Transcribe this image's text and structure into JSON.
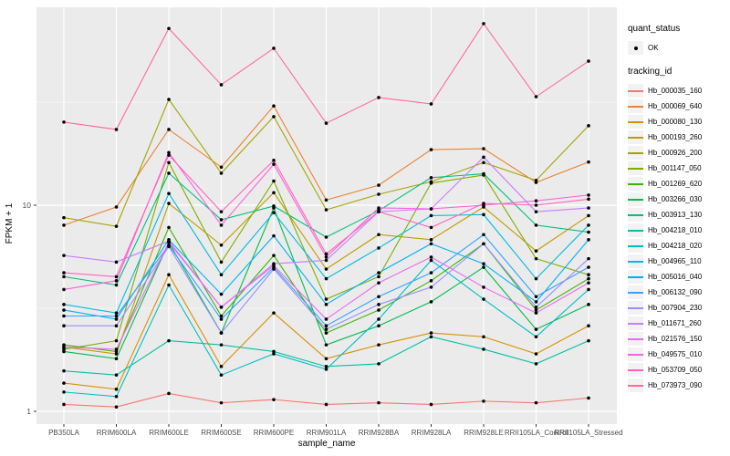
{
  "chart_data": {
    "type": "line",
    "title": "",
    "xlabel": "sample_name",
    "ylabel": "FPKM + 1",
    "y_axis": {
      "scale": "log10",
      "ticks": [
        1,
        10
      ],
      "tick_labels": [
        "1",
        "10"
      ],
      "minor_ticks": [
        3.162,
        31.62
      ],
      "ylim": [
        0.95,
        91
      ],
      "grid": true
    },
    "x_axis": {
      "categories": [
        "PB350LA",
        "RRIM600LA",
        "RRIM600LE",
        "RRIM600SE",
        "RRIM600PE",
        "RRIM901LA",
        "RRIM928BA",
        "RRIM928LA",
        "RRIM928LE",
        "RRII105LA_Control",
        "RRII105LA_Stressed"
      ],
      "grid": true
    },
    "legend": {
      "position": "right",
      "quant_status_title": "quant_status",
      "quant_status_items": [
        {
          "label": "OK",
          "marker": "black-point"
        }
      ],
      "tracking_id_title": "tracking_id"
    },
    "panel_background": "#EBEBEB",
    "gridline_color": "#FFFFFF",
    "point_color": "#000000",
    "series": [
      {
        "name": "Hb_000035_160",
        "color": "#F8766D",
        "values": [
          1.08,
          1.05,
          1.22,
          1.1,
          1.14,
          1.08,
          1.1,
          1.08,
          1.12,
          1.1,
          1.16
        ]
      },
      {
        "name": "Hb_000069_640",
        "color": "#EA8331",
        "values": [
          8.0,
          9.8,
          23.3,
          15.3,
          30.3,
          10.6,
          12.5,
          18.6,
          18.8,
          12.9,
          16.2
        ]
      },
      {
        "name": "Hb_000080_130",
        "color": "#D89000",
        "values": [
          1.37,
          1.28,
          4.6,
          1.65,
          3.0,
          1.8,
          2.1,
          2.4,
          2.3,
          1.9,
          2.6
        ]
      },
      {
        "name": "Hb_000193_260",
        "color": "#C09B00",
        "values": [
          2.05,
          1.9,
          10.2,
          6.4,
          11.5,
          4.9,
          7.2,
          6.8,
          9.8,
          6.0,
          8.9
        ]
      },
      {
        "name": "Hb_000926_200",
        "color": "#A3A500",
        "values": [
          8.7,
          7.9,
          32.6,
          14.3,
          26.9,
          9.5,
          11.3,
          13.0,
          16.1,
          13.2,
          24.3
        ]
      },
      {
        "name": "Hb_001147_050",
        "color": "#7CAE00",
        "values": [
          2.0,
          2.2,
          16.1,
          5.3,
          13.1,
          3.5,
          4.5,
          12.8,
          14.0,
          5.5,
          4.6
        ]
      },
      {
        "name": "Hb_001269_620",
        "color": "#39B600",
        "values": [
          2.1,
          1.95,
          7.8,
          2.9,
          5.7,
          2.4,
          3.1,
          4.3,
          6.5,
          3.1,
          4.4
        ]
      },
      {
        "name": "Hb_003266_030",
        "color": "#00BB4E",
        "values": [
          1.95,
          1.8,
          6.6,
          2.4,
          9.7,
          2.1,
          2.6,
          3.4,
          5.0,
          2.5,
          3.3
        ]
      },
      {
        "name": "Hb_003913_130",
        "color": "#00BF7D",
        "values": [
          4.5,
          4.1,
          14.3,
          8.5,
          9.9,
          7.0,
          9.4,
          13.6,
          14.2,
          8.0,
          7.4
        ]
      },
      {
        "name": "Hb_004218_010",
        "color": "#00C1A3",
        "values": [
          1.57,
          1.5,
          2.2,
          2.1,
          1.95,
          1.65,
          1.7,
          2.3,
          2.0,
          1.7,
          2.2
        ]
      },
      {
        "name": "Hb_004218_020",
        "color": "#00BFC4",
        "values": [
          1.24,
          1.18,
          4.1,
          1.5,
          1.9,
          1.6,
          2.8,
          5.4,
          3.5,
          2.3,
          3.9
        ]
      },
      {
        "name": "Hb_004965_110",
        "color": "#00BAE0",
        "values": [
          3.3,
          3.0,
          11.4,
          4.6,
          9.2,
          4.4,
          6.2,
          8.9,
          9.0,
          4.4,
          8.0
        ]
      },
      {
        "name": "Hb_005016_040",
        "color": "#00B0F6",
        "values": [
          3.1,
          2.8,
          6.8,
          3.7,
          7.1,
          3.3,
          4.7,
          6.5,
          5.2,
          3.4,
          6.8
        ]
      },
      {
        "name": "Hb_006132_090",
        "color": "#35A2FF",
        "values": [
          2.9,
          2.9,
          6.4,
          2.8,
          5.0,
          2.6,
          3.6,
          4.7,
          7.2,
          3.6,
          5.0
        ]
      },
      {
        "name": "Hb_007904_230",
        "color": "#9590FF",
        "values": [
          2.6,
          2.6,
          6.3,
          2.4,
          4.9,
          2.5,
          3.3,
          4.0,
          6.5,
          3.2,
          5.5
        ]
      },
      {
        "name": "Hb_011671_260",
        "color": "#C77CFF",
        "values": [
          5.7,
          5.3,
          6.7,
          3.2,
          5.2,
          5.4,
          9.3,
          9.6,
          17.1,
          9.3,
          9.7
        ]
      },
      {
        "name": "Hb_021576_150",
        "color": "#E76BF3",
        "values": [
          2.05,
          2.0,
          6.6,
          3.2,
          5.1,
          2.8,
          4.2,
          5.6,
          4.0,
          3.0,
          4.2
        ]
      },
      {
        "name": "Hb_049575_010",
        "color": "#FA62DB",
        "values": [
          3.9,
          4.3,
          18.0,
          8.0,
          15.8,
          5.6,
          9.7,
          9.6,
          10.0,
          10.5,
          11.2
        ]
      },
      {
        "name": "Hb_053709_050",
        "color": "#FF62BC",
        "values": [
          4.7,
          4.5,
          17.5,
          9.3,
          16.5,
          5.8,
          9.3,
          7.8,
          10.2,
          10.0,
          10.7
        ]
      },
      {
        "name": "Hb_073973_090",
        "color": "#FF6A98",
        "values": [
          25.3,
          23.3,
          72.0,
          38.4,
          57.7,
          25.0,
          33.3,
          31.0,
          76.0,
          33.6,
          50.0
        ]
      }
    ]
  }
}
